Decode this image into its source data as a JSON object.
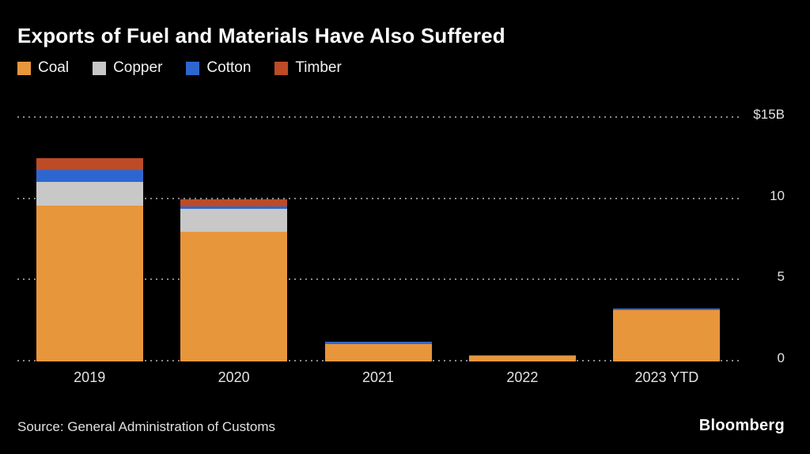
{
  "title": "Exports of Fuel and Materials Have Also Suffered",
  "legend": [
    {
      "label": "Coal",
      "color": "#E8963C"
    },
    {
      "label": "Copper",
      "color": "#C8C8C8"
    },
    {
      "label": "Cotton",
      "color": "#2E66D0"
    },
    {
      "label": "Timber",
      "color": "#BD4B26"
    }
  ],
  "chart_data": {
    "type": "bar",
    "stacked": true,
    "categories": [
      "2019",
      "2020",
      "2021",
      "2022",
      "2023 YTD"
    ],
    "series": [
      {
        "name": "Coal",
        "color": "#E8963C",
        "values": [
          9.6,
          8.0,
          1.08,
          0.32,
          3.15
        ]
      },
      {
        "name": "Copper",
        "color": "#C8C8C8",
        "values": [
          1.45,
          1.4,
          0,
          0,
          0
        ]
      },
      {
        "name": "Cotton",
        "color": "#2E66D0",
        "values": [
          0.75,
          0.15,
          0.12,
          0.08,
          0.11
        ]
      },
      {
        "name": "Timber",
        "color": "#BD4B26",
        "values": [
          0.7,
          0.45,
          0,
          0,
          0
        ]
      }
    ],
    "title": "Exports of Fuel and Materials Have Also Suffered",
    "xlabel": "",
    "ylabel": "",
    "ylim": [
      0,
      15
    ],
    "gridlines": [
      0,
      5,
      10,
      15
    ],
    "ytick_labels": [
      {
        "value": 15,
        "label": "$15B"
      },
      {
        "value": 10,
        "label": "10"
      },
      {
        "value": 5,
        "label": "5"
      },
      {
        "value": 0,
        "label": "0"
      }
    ],
    "legend_position": "top",
    "grid_style": "dotted"
  },
  "footer": {
    "source": "Source: General Administration of Customs",
    "brand": "Bloomberg"
  }
}
